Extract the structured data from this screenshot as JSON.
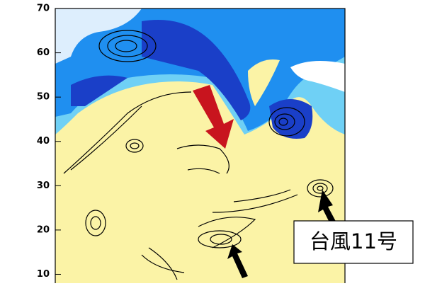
{
  "map": {
    "ylim": [
      8,
      70
    ],
    "yticks": [
      10,
      20,
      30,
      40,
      50,
      60,
      70
    ],
    "annotation": "台風11号"
  }
}
